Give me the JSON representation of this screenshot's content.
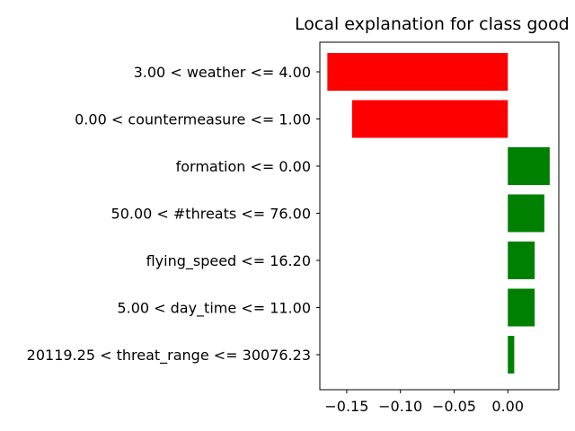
{
  "chart_data": {
    "type": "bar",
    "orientation": "horizontal",
    "title": "Local explanation for class good",
    "xlabel": "",
    "ylabel": "",
    "xlim": [
      -0.175,
      0.0475
    ],
    "xticks": [
      -0.15,
      -0.1,
      -0.05,
      0.0
    ],
    "xtick_labels": [
      "−0.15",
      "−0.10",
      "−0.05",
      "0.00"
    ],
    "categories": [
      "3.00 < weather <= 4.00",
      "0.00 < countermeasure <= 1.00",
      "formation <= 0.00",
      "50.00 < #threats <= 76.00",
      "flying_speed <= 16.20",
      "5.00 < day_time <= 11.00",
      "20119.25 < threat_range <= 30076.23"
    ],
    "values": [
      -0.168,
      -0.145,
      0.039,
      0.034,
      0.025,
      0.025,
      0.006
    ],
    "colors": {
      "positive": "#008000",
      "negative": "#ff0000"
    }
  }
}
